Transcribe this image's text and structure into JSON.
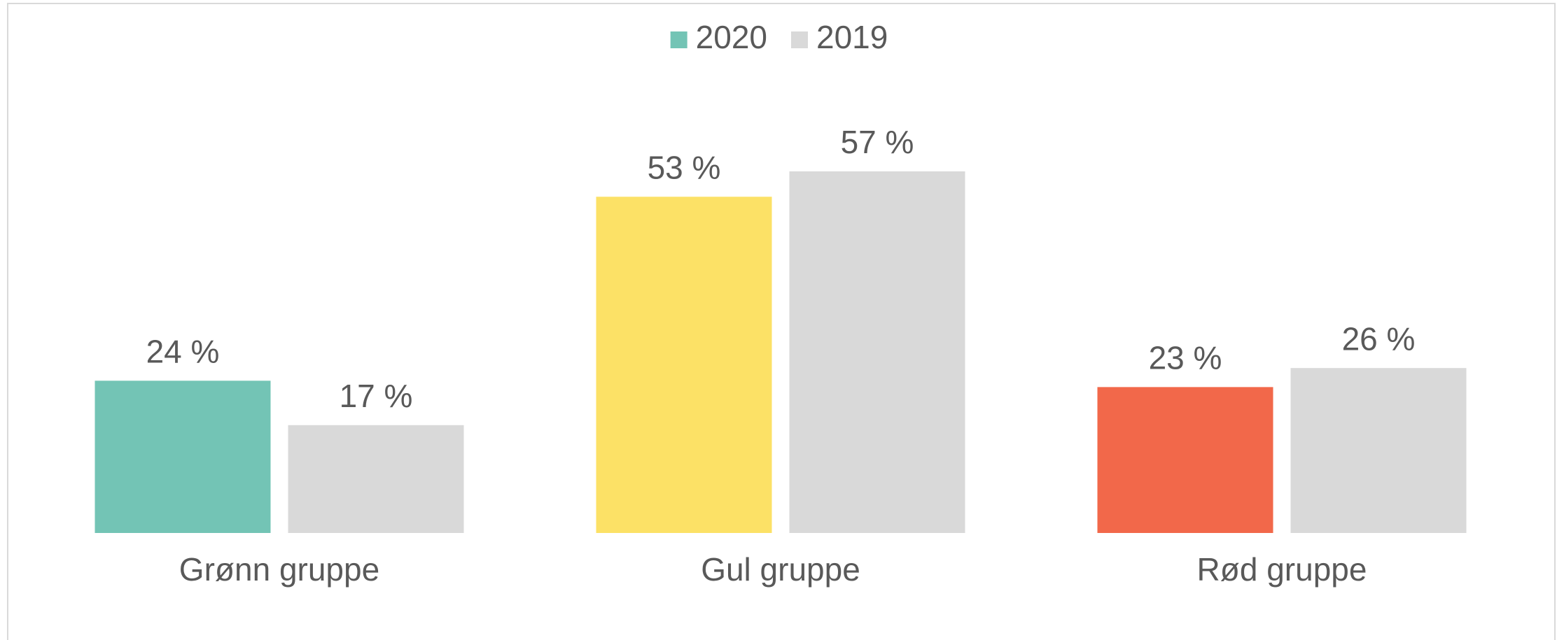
{
  "chart_data": {
    "type": "bar",
    "categories": [
      "Grønn gruppe",
      "Gul gruppe",
      "Rød gruppe"
    ],
    "series": [
      {
        "name": "2020",
        "color": "#73c4b5",
        "colors": [
          "#73c4b5",
          "#fce166",
          "#f2684a"
        ],
        "values": [
          24,
          53,
          23
        ],
        "value_labels": [
          "24 %",
          "53 %",
          "23 %"
        ]
      },
      {
        "name": "2019",
        "color": "#d9d9d9",
        "colors": [
          "#d9d9d9",
          "#d9d9d9",
          "#d9d9d9"
        ],
        "values": [
          17,
          57,
          26
        ],
        "value_labels": [
          "17 %",
          "57 %",
          "26 %"
        ]
      }
    ],
    "legend": "top"
  }
}
